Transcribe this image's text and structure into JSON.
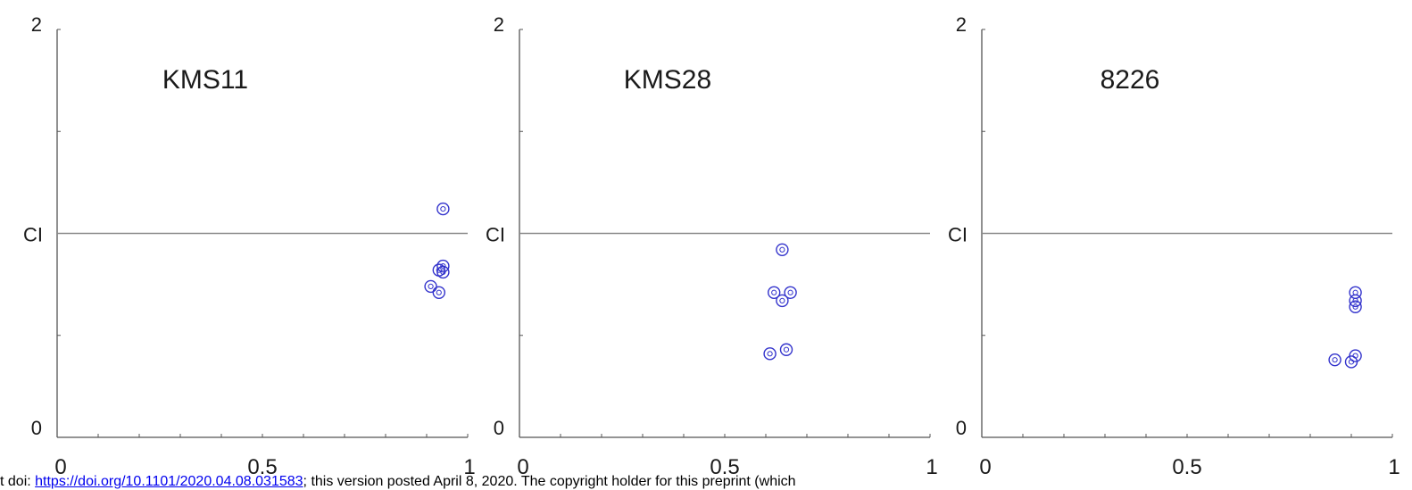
{
  "chart_data": [
    {
      "type": "scatter",
      "title": "KMS11",
      "ylabel": "CI",
      "xlim": [
        0,
        1
      ],
      "ylim": [
        0,
        2
      ],
      "x_tick_labels": [
        "0",
        "0.5",
        "1"
      ],
      "y_tick_labels": [
        "0",
        "2"
      ],
      "reference_line_y": 1,
      "grid": false,
      "marker_color": "#3333cc",
      "points": [
        {
          "x": 0.94,
          "y": 1.12
        },
        {
          "x": 0.94,
          "y": 0.84
        },
        {
          "x": 0.93,
          "y": 0.82
        },
        {
          "x": 0.94,
          "y": 0.81
        },
        {
          "x": 0.91,
          "y": 0.74
        },
        {
          "x": 0.93,
          "y": 0.71
        }
      ]
    },
    {
      "type": "scatter",
      "title": "KMS28",
      "ylabel": "CI",
      "xlim": [
        0,
        1
      ],
      "ylim": [
        0,
        2
      ],
      "x_tick_labels": [
        "0",
        "0.5",
        "1"
      ],
      "y_tick_labels": [
        "0",
        "2"
      ],
      "reference_line_y": 1,
      "grid": false,
      "marker_color": "#3333cc",
      "points": [
        {
          "x": 0.64,
          "y": 0.92
        },
        {
          "x": 0.62,
          "y": 0.71
        },
        {
          "x": 0.66,
          "y": 0.71
        },
        {
          "x": 0.64,
          "y": 0.67
        },
        {
          "x": 0.61,
          "y": 0.41
        },
        {
          "x": 0.65,
          "y": 0.43
        }
      ]
    },
    {
      "type": "scatter",
      "title": "8226",
      "ylabel": "CI",
      "xlim": [
        0,
        1
      ],
      "ylim": [
        0,
        2
      ],
      "x_tick_labels": [
        "0",
        "0.5",
        "1"
      ],
      "y_tick_labels": [
        "0",
        "2"
      ],
      "reference_line_y": 1,
      "grid": false,
      "marker_color": "#3333cc",
      "points": [
        {
          "x": 0.91,
          "y": 0.71
        },
        {
          "x": 0.91,
          "y": 0.67
        },
        {
          "x": 0.91,
          "y": 0.64
        },
        {
          "x": 0.91,
          "y": 0.4
        },
        {
          "x": 0.86,
          "y": 0.38
        },
        {
          "x": 0.9,
          "y": 0.37
        }
      ]
    }
  ],
  "footer": {
    "prefix": "t doi: ",
    "doi_link": "https://doi.org/10.1101/2020.04.08.031583",
    "suffix": "; this version posted April 8, 2020. The copyright holder for this preprint (which"
  }
}
